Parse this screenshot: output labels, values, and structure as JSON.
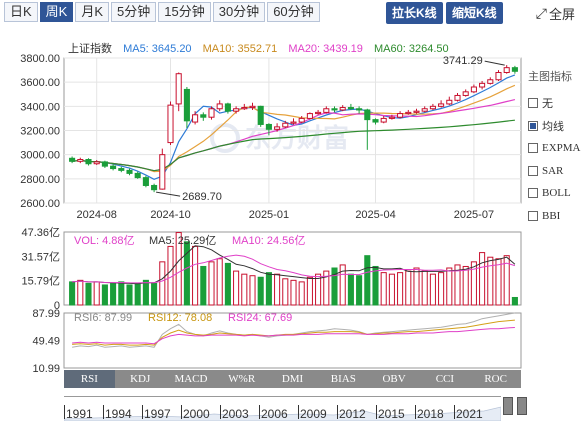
{
  "tabs": [
    {
      "label": "日K",
      "active": false
    },
    {
      "label": "周K",
      "active": true
    },
    {
      "label": "月K",
      "active": false
    },
    {
      "label": "5分钟",
      "active": false
    },
    {
      "label": "15分钟",
      "active": false
    },
    {
      "label": "30分钟",
      "active": false
    },
    {
      "label": "60分钟",
      "active": false
    }
  ],
  "buttons": {
    "stretch": "拉长K线",
    "shorten": "缩短K线",
    "fullscreen": "全屏"
  },
  "legend": {
    "name": "上证指数",
    "ma5": "MA5: 3645.20",
    "ma10": "MA10: 3552.71",
    "ma20": "MA20: 3439.19",
    "ma60": "MA60: 3264.50"
  },
  "colors": {
    "up": "#c8102e",
    "down": "#1a9e3a",
    "ma5": "#2e7bd6",
    "ma10": "#e6a23c",
    "ma20": "#e040c8",
    "ma60": "#2e8b2e",
    "rsi6": "#b0b0b0",
    "rsi12": "#d4a017",
    "rsi24": "#e040c8"
  },
  "indicator_panel": {
    "title": "主图指标",
    "items": [
      {
        "label": "无",
        "checked": false
      },
      {
        "label": "均线",
        "checked": true
      },
      {
        "label": "EXPMA",
        "checked": false
      },
      {
        "label": "SAR",
        "checked": false
      },
      {
        "label": "BOLL",
        "checked": false
      },
      {
        "label": "BBI",
        "checked": false
      }
    ]
  },
  "volume_legend": {
    "vol": "VOL: 4.88亿",
    "ma5": "MA5: 25.29亿",
    "ma10": "MA10: 24.56亿"
  },
  "rsi_legend": {
    "rsi6": "RSI6: 87.99",
    "rsi12": "RSI12: 78.08",
    "rsi24": "RSI24: 67.69"
  },
  "indicator_tabs": [
    "RSI",
    "KDJ",
    "MACD",
    "W%R",
    "DMI",
    "BIAS",
    "OBV",
    "CCI",
    "ROC"
  ],
  "timeline_years": [
    "1991",
    "1994",
    "1997",
    "2000",
    "2003",
    "2006",
    "2009",
    "2012",
    "2015",
    "2018",
    "2021"
  ],
  "chart_data": [
    {
      "type": "candlestick",
      "title": "上证指数",
      "y_ticks": [
        "3800.00",
        "3600.00",
        "3400.00",
        "3200.00",
        "3000.00",
        "2800.00",
        "2600.00"
      ],
      "ylim": [
        2600,
        3800
      ],
      "x_ticks": [
        "2024-08",
        "2024-10",
        "2025-01",
        "2025-04",
        "2025-07"
      ],
      "annotations": {
        "max": "3741.29",
        "min": "2689.70"
      },
      "candles": [
        [
          2970,
          2945,
          2985,
          2930
        ],
        [
          2945,
          2960,
          2975,
          2930
        ],
        [
          2960,
          2925,
          2970,
          2910
        ],
        [
          2925,
          2940,
          2955,
          2915
        ],
        [
          2940,
          2905,
          2950,
          2890
        ],
        [
          2905,
          2885,
          2920,
          2870
        ],
        [
          2885,
          2870,
          2900,
          2855
        ],
        [
          2870,
          2845,
          2885,
          2830
        ],
        [
          2845,
          2810,
          2860,
          2800
        ],
        [
          2810,
          2745,
          2825,
          2730
        ],
        [
          2745,
          2710,
          2760,
          2689.7
        ],
        [
          2715,
          3000,
          3050,
          2710
        ],
        [
          3100,
          3410,
          3440,
          3080
        ],
        [
          3420,
          3670,
          3680,
          3360
        ],
        [
          3540,
          3280,
          3560,
          3220
        ],
        [
          3270,
          3330,
          3360,
          3250
        ],
        [
          3330,
          3310,
          3350,
          3280
        ],
        [
          3310,
          3380,
          3400,
          3290
        ],
        [
          3380,
          3420,
          3450,
          3360
        ],
        [
          3420,
          3360,
          3430,
          3340
        ],
        [
          3360,
          3380,
          3400,
          3340
        ],
        [
          3380,
          3390,
          3420,
          3370
        ],
        [
          3390,
          3400,
          3430,
          3370
        ],
        [
          3400,
          3250,
          3405,
          3230
        ],
        [
          3250,
          3210,
          3260,
          3160
        ],
        [
          3210,
          3230,
          3260,
          3190
        ],
        [
          3230,
          3260,
          3280,
          3220
        ],
        [
          3260,
          3270,
          3300,
          3250
        ],
        [
          3270,
          3300,
          3320,
          3260
        ],
        [
          3300,
          3340,
          3350,
          3290
        ],
        [
          3340,
          3350,
          3370,
          3330
        ],
        [
          3350,
          3380,
          3400,
          3340
        ],
        [
          3380,
          3370,
          3400,
          3350
        ],
        [
          3370,
          3390,
          3410,
          3360
        ],
        [
          3390,
          3380,
          3420,
          3370
        ],
        [
          3380,
          3370,
          3400,
          3340
        ],
        [
          3370,
          3290,
          3380,
          3040
        ],
        [
          3290,
          3270,
          3300,
          3250
        ],
        [
          3270,
          3300,
          3320,
          3260
        ],
        [
          3300,
          3310,
          3330,
          3290
        ],
        [
          3310,
          3340,
          3360,
          3300
        ],
        [
          3340,
          3350,
          3370,
          3330
        ],
        [
          3350,
          3360,
          3380,
          3340
        ],
        [
          3360,
          3380,
          3400,
          3350
        ],
        [
          3380,
          3400,
          3420,
          3370
        ],
        [
          3400,
          3420,
          3450,
          3390
        ],
        [
          3420,
          3450,
          3480,
          3410
        ],
        [
          3450,
          3490,
          3510,
          3440
        ],
        [
          3490,
          3520,
          3540,
          3480
        ],
        [
          3520,
          3560,
          3580,
          3510
        ],
        [
          3560,
          3590,
          3610,
          3540
        ],
        [
          3590,
          3620,
          3640,
          3580
        ],
        [
          3620,
          3680,
          3700,
          3610
        ],
        [
          3680,
          3720,
          3741.29,
          3670
        ],
        [
          3720,
          3690,
          3735,
          3670
        ]
      ]
    },
    {
      "type": "bar",
      "title": "VOL",
      "y_ticks": [
        "47.36亿",
        "31.57亿",
        "15.79亿",
        "0"
      ],
      "ylim": [
        0,
        47.36
      ],
      "values": [
        15,
        16,
        14,
        15,
        13,
        14,
        15,
        13,
        14,
        16,
        14,
        28,
        38,
        47,
        41,
        38,
        25,
        28,
        30,
        27,
        22,
        20,
        19,
        18,
        21,
        20,
        17,
        16,
        15,
        18,
        20,
        22,
        24,
        26,
        20,
        19,
        32,
        25,
        21,
        20,
        21,
        22,
        24,
        22,
        20,
        21,
        24,
        26,
        25,
        28,
        34,
        31,
        30,
        32,
        4.88
      ]
    },
    {
      "type": "line",
      "title": "RSI",
      "y_ticks": [
        "87.99",
        "49.49",
        "10.99"
      ],
      "ylim": [
        10.99,
        87.99
      ],
      "series": [
        {
          "name": "RSI6",
          "values": [
            40,
            42,
            41,
            43,
            40,
            41,
            42,
            40,
            41,
            42,
            40,
            58,
            66,
            72,
            62,
            58,
            56,
            60,
            63,
            60,
            58,
            57,
            58,
            56,
            54,
            56,
            57,
            58,
            60,
            62,
            63,
            64,
            66,
            65,
            64,
            62,
            58,
            60,
            61,
            62,
            63,
            64,
            65,
            66,
            67,
            68,
            70,
            72,
            73,
            76,
            80,
            82,
            84,
            86,
            87.99
          ]
        },
        {
          "name": "RSI12",
          "values": [
            44,
            45,
            44,
            45,
            43,
            44,
            44,
            43,
            43,
            44,
            43,
            54,
            60,
            64,
            60,
            58,
            57,
            58,
            60,
            59,
            58,
            57,
            58,
            57,
            56,
            57,
            58,
            58,
            59,
            60,
            61,
            61,
            62,
            62,
            62,
            61,
            58,
            59,
            60,
            60,
            61,
            62,
            62,
            63,
            64,
            65,
            66,
            67,
            68,
            70,
            72,
            74,
            76,
            77,
            78.08
          ]
        },
        {
          "name": "RSI24",
          "values": [
            46,
            47,
            46,
            47,
            46,
            46,
            46,
            46,
            46,
            46,
            45,
            52,
            56,
            58,
            57,
            56,
            56,
            57,
            57,
            57,
            57,
            56,
            57,
            56,
            56,
            57,
            57,
            57,
            58,
            58,
            58,
            59,
            59,
            59,
            59,
            59,
            58,
            58,
            58,
            59,
            59,
            59,
            60,
            60,
            60,
            61,
            62,
            62,
            63,
            64,
            65,
            66,
            66,
            67,
            67.69
          ]
        }
      ]
    }
  ]
}
